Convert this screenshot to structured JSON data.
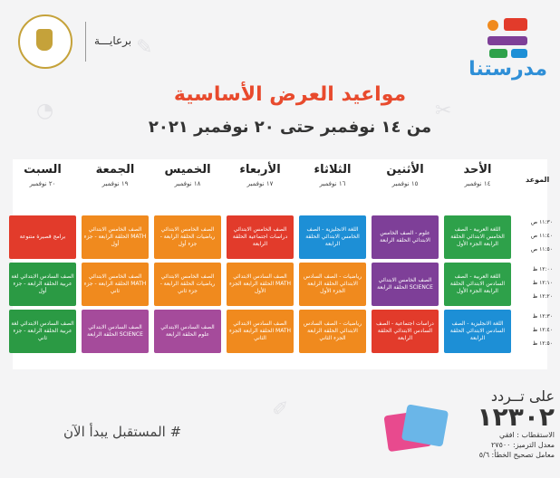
{
  "header": {
    "logo_text": "مدرستنا",
    "sponsor_label": "برعايـــة",
    "title": "مواعيد العرض الأساسية",
    "subtitle": "من ١٤ نوفمبر حتى ٢٠ نوفمبر ٢٠٢١"
  },
  "table": {
    "time_header": "الموعد",
    "days": [
      {
        "name": "الأحد",
        "date": "١٤ نوفمبر"
      },
      {
        "name": "الأثنين",
        "date": "١٥ نوفمبر"
      },
      {
        "name": "الثلاثاء",
        "date": "١٦ نوفمبر"
      },
      {
        "name": "الأربعاء",
        "date": "١٧ نوفمبر"
      },
      {
        "name": "الخميس",
        "date": "١٨ نوفمبر"
      },
      {
        "name": "الجمعة",
        "date": "١٩ نوفمبر"
      },
      {
        "name": "السبت",
        "date": "٢٠ نوفمبر"
      }
    ],
    "times": [
      [
        "١١:٣٠ ص",
        "١١:٤٠ ص",
        "١١:٥٠ ص"
      ],
      [
        "١٢:٠٠ ظ",
        "١٢:١٠ ظ",
        "١٢:٢٠ ظ"
      ],
      [
        "١٢:٣٠ ظ",
        "١٢:٤٠ ظ",
        "١٢:٥٠ ظ"
      ]
    ],
    "blocks": [
      {
        "day": 0,
        "row": 0,
        "color": "#2ea14a",
        "text": "اللغة العربية - الصف الخامس الابتدائي الحلقة الرابعة الجزء الأول"
      },
      {
        "day": 1,
        "row": 0,
        "color": "#7e3f98",
        "text": "علوم - الصف الخامس الابتدائي الحلقة الرابعة"
      },
      {
        "day": 2,
        "row": 0,
        "color": "#1d8fd6",
        "text": "اللغة الانجليزية - الصف الخامس الابتدائي الحلقة الرابعة"
      },
      {
        "day": 3,
        "row": 0,
        "color": "#e23b2b",
        "text": "الصف الخامس الابتدائي دراسات اجتماعية الحلقة الرابعة"
      },
      {
        "day": 4,
        "row": 0,
        "color": "#f08a1e",
        "text": "الصف الخامس الابتدائي رياضيات الحلقة الرابعة - جزء أول"
      },
      {
        "day": 5,
        "row": 0,
        "color": "#f08a1e",
        "text": "الصف الخامس الابتدائي MATH الحلقة الرابعة - جزء أول"
      },
      {
        "day": 6,
        "row": 0,
        "color": "#e23b2b",
        "text": "برامج قصيرة متنوعة"
      },
      {
        "day": 0,
        "row": 1,
        "color": "#2ea14a",
        "text": "اللغة العربية - الصف السادس الابتدائي الحلقة الرابعة الجزء الأول"
      },
      {
        "day": 1,
        "row": 1,
        "color": "#7e3f98",
        "text": "الصف الخامس الابتدائي SCIENCE الحلقة الرابعة"
      },
      {
        "day": 2,
        "row": 1,
        "color": "#f08a1e",
        "text": "رياضيات - الصف السادس الابتدائي الحلقة الرابعة الجزء الأول"
      },
      {
        "day": 3,
        "row": 1,
        "color": "#f08a1e",
        "text": "الصف السادس الابتدائي MATH الحلقة الرابعة الجزء الأول"
      },
      {
        "day": 4,
        "row": 1,
        "color": "#f08a1e",
        "text": "الصف الخامس الابتدائي رياضيات الحلقة الرابعة - جزء ثاني"
      },
      {
        "day": 5,
        "row": 1,
        "color": "#f08a1e",
        "text": "الصف الخامس الابتدائي MATH الحلقة الرابعة - جزء ثاني"
      },
      {
        "day": 6,
        "row": 1,
        "color": "#2b9a44",
        "text": "الصف السادس الابتدائي لغة عربية الحلقة الرابعة - جزء أول"
      },
      {
        "day": 0,
        "row": 2,
        "color": "#1d8fd6",
        "text": "اللغة الانجليزية - الصف السادس الابتدائي الحلقة الرابعة"
      },
      {
        "day": 1,
        "row": 2,
        "color": "#e23b2b",
        "text": "دراسات اجتماعية - الصف السادس الابتدائي الحلقة الرابعة"
      },
      {
        "day": 2,
        "row": 2,
        "color": "#f08a1e",
        "text": "رياضيات - الصف السادس الابتدائي الحلقة الرابعة الجزء الثاني"
      },
      {
        "day": 3,
        "row": 2,
        "color": "#f08a1e",
        "text": "الصف السادس الابتدائي MATH الحلقة الرابعة الجزء الثاني"
      },
      {
        "day": 4,
        "row": 2,
        "color": "#a54b9b",
        "text": "الصف السادس الابتدائي علوم الحلقة الرابعة"
      },
      {
        "day": 5,
        "row": 2,
        "color": "#a54b9b",
        "text": "الصف السادس الابتدائي SCIENCE الحلقة الرابعة"
      },
      {
        "day": 6,
        "row": 2,
        "color": "#2b9a44",
        "text": "الصف السادس الابتدائي لغة عربية الحلقة الرابعة - جزء ثاني"
      }
    ]
  },
  "footer": {
    "hashtag": "# المستقبل يبدأ الآن",
    "freq_label": "على تــردد",
    "freq_number": "١٢٣٠٢",
    "polarization": "الاستقطاب : افقي",
    "symbol_rate": "معدل الترميز: ٢٧٥٠٠",
    "fec": "معامل تصحيح الخطأ: ٥/٦"
  }
}
